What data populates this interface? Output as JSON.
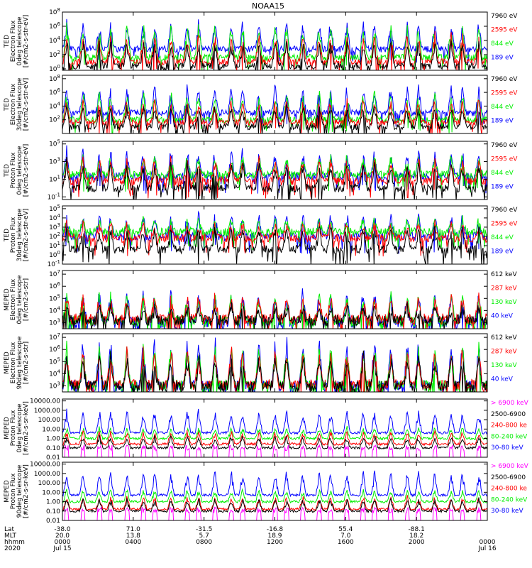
{
  "title": "NOAA15",
  "colors": {
    "black": "#000000",
    "red": "#ff0000",
    "green": "#00ee00",
    "blue": "#0000ff",
    "magenta": "#ff00ff"
  },
  "chart_data": [
    {
      "type": "line",
      "ylabel": [
        "TED",
        "Electron Flux",
        "0deg telescope",
        "[#/cm2-s-str-eV]"
      ],
      "scale": "log",
      "ticks": [
        "10^0",
        "10^2",
        "10^4",
        "10^6",
        "10^8"
      ],
      "ylim_exp": [
        -0.2,
        8
      ],
      "series": [
        {
          "name": "7960 eV",
          "color": "black",
          "baseline": 0.4,
          "peak": 4.0
        },
        {
          "name": "2595 eV",
          "color": "red",
          "baseline": 1.0,
          "peak": 4.8
        },
        {
          "name": "844 eV",
          "color": "green",
          "baseline": 1.6,
          "peak": 6.2
        },
        {
          "name": "189 eV",
          "color": "blue",
          "baseline": 2.8,
          "peak": 6.6
        }
      ]
    },
    {
      "type": "line",
      "ylabel": [
        "TED",
        "Electron Flux",
        "30deg telescope",
        "[#/cm2-s-str-eV]"
      ],
      "scale": "log",
      "ticks": [
        "10^2",
        "10^4",
        "10^6",
        "10^8"
      ],
      "ylim_exp": [
        0,
        8.5
      ],
      "series": [
        {
          "name": "7960 eV",
          "color": "black",
          "baseline": 1.0,
          "peak": 4.2
        },
        {
          "name": "2595 eV",
          "color": "red",
          "baseline": 1.6,
          "peak": 5.0
        },
        {
          "name": "844 eV",
          "color": "green",
          "baseline": 2.0,
          "peak": 6.2
        },
        {
          "name": "189 eV",
          "color": "blue",
          "baseline": 3.0,
          "peak": 6.8
        }
      ]
    },
    {
      "type": "line",
      "ylabel": [
        "TED",
        "Proton Flux",
        "0deg telescope",
        "[#/cm2-s-str-eV]"
      ],
      "scale": "log",
      "ticks": [
        "10^-1",
        "10^1",
        "10^3",
        "10^5"
      ],
      "ylim_exp": [
        -1.3,
        5.3
      ],
      "series": [
        {
          "name": "7960 eV",
          "color": "black",
          "baseline": 0.0,
          "peak": 3.0
        },
        {
          "name": "2595 eV",
          "color": "red",
          "baseline": 0.8,
          "peak": 3.3
        },
        {
          "name": "844 eV",
          "color": "green",
          "baseline": 1.5,
          "peak": 3.6
        },
        {
          "name": "189 eV",
          "color": "blue",
          "baseline": 1.3,
          "peak": 4.2
        }
      ]
    },
    {
      "type": "line",
      "ylabel": [
        "TED",
        "Proton Flux",
        "30deg telescope",
        "[#/cm2-s-str-eV]"
      ],
      "scale": "log",
      "ticks": [
        "10^-1",
        "10^0",
        "10^1",
        "10^2",
        "10^3",
        "10^4",
        "10^5"
      ],
      "ylim_exp": [
        -1,
        5.3
      ],
      "series": [
        {
          "name": "7960 eV",
          "color": "black",
          "baseline": 0.6,
          "peak": 3.0
        },
        {
          "name": "2595 eV",
          "color": "red",
          "baseline": 1.8,
          "peak": 3.4
        },
        {
          "name": "844 eV",
          "color": "green",
          "baseline": 2.5,
          "peak": 3.8
        },
        {
          "name": "189 eV",
          "color": "blue",
          "baseline": 2.0,
          "peak": 4.4
        }
      ]
    },
    {
      "type": "line",
      "ylabel": [
        "MEPED",
        "Electron Flux",
        "0deg telescope",
        "[#/cm2-s-str]"
      ],
      "scale": "log",
      "ticks": [
        "10^3",
        "10^4",
        "10^5",
        "10^6",
        "10^7"
      ],
      "ylim_exp": [
        2.5,
        7.3
      ],
      "series": [
        {
          "name": "612 keV",
          "color": "black",
          "baseline": 3.2,
          "peak": 4.3
        },
        {
          "name": "287 keV",
          "color": "red",
          "baseline": 3.3,
          "peak": 5.2
        },
        {
          "name": "130 keV",
          "color": "green",
          "baseline": 3.1,
          "peak": 5.4
        },
        {
          "name": "40 keV",
          "color": "blue",
          "baseline": 3.0,
          "peak": 5.6
        }
      ]
    },
    {
      "type": "line",
      "ylabel": [
        "MEPED",
        "Electron Flux",
        "90deg telescope",
        "[#/cm2-s-str]"
      ],
      "scale": "log",
      "ticks": [
        "10^3",
        "10^4",
        "10^5",
        "10^6",
        "10^7"
      ],
      "ylim_exp": [
        2.5,
        7.3
      ],
      "series": [
        {
          "name": "612 keV",
          "color": "black",
          "baseline": 3.0,
          "peak": 5.6
        },
        {
          "name": "287 keV",
          "color": "red",
          "baseline": 3.1,
          "peak": 6.0
        },
        {
          "name": "130 keV",
          "color": "green",
          "baseline": 3.0,
          "peak": 6.3
        },
        {
          "name": "40 keV",
          "color": "blue",
          "baseline": 3.0,
          "peak": 6.8
        }
      ]
    },
    {
      "type": "line",
      "ylabel": [
        "MEPED",
        "Proton Flux",
        "0deg telescope",
        "[#/cm2-s-sr-keV]"
      ],
      "scale": "log",
      "ticks": [
        "0.01",
        "0.10",
        "1.00",
        "10.00",
        "100.00",
        "1000.00",
        "10000.00"
      ],
      "ylim_exp": [
        -2,
        4.2
      ],
      "series": [
        {
          "name": "> 6900 keV",
          "color": "magenta",
          "baseline": -1.3,
          "peak": -0.7
        },
        {
          "name": "2500-6900",
          "color": "black",
          "baseline": -1.0,
          "peak": 0.3
        },
        {
          "name": "240-800 ke",
          "color": "red",
          "baseline": -0.6,
          "peak": 0.8
        },
        {
          "name": "80-240 keV",
          "color": "green",
          "baseline": 0.0,
          "peak": 1.2
        },
        {
          "name": "30-80 keV",
          "color": "blue",
          "baseline": 0.6,
          "peak": 3.0
        }
      ]
    },
    {
      "type": "line",
      "ylabel": [
        "MEPED",
        "Proton Flux",
        "90deg telescope",
        "[#/cm2-s-sr-keV]"
      ],
      "scale": "log",
      "ticks": [
        "0.01",
        "0.10",
        "1.00",
        "10.00",
        "100.00",
        "1000.00",
        "10000.00"
      ],
      "ylim_exp": [
        -2,
        4.2
      ],
      "series": [
        {
          "name": "> 6900 keV",
          "color": "magenta",
          "baseline": -1.2,
          "peak": -0.6
        },
        {
          "name": "2500-6900",
          "color": "black",
          "baseline": -1.0,
          "peak": 0.3
        },
        {
          "name": "240-800 ke",
          "color": "red",
          "baseline": -0.8,
          "peak": 0.6
        },
        {
          "name": "80-240 keV",
          "color": "green",
          "baseline": 0.0,
          "peak": 1.3
        },
        {
          "name": "30-80 keV",
          "color": "blue",
          "baseline": 0.7,
          "peak": 3.2
        }
      ]
    }
  ],
  "x_axis": {
    "row_labels": [
      "Lat",
      "MLT",
      "hhmm",
      "2020"
    ],
    "columns": [
      [
        "-38.0",
        "20.0",
        "0000",
        "Jul 15"
      ],
      [
        "71.0",
        "13.8",
        "0400",
        ""
      ],
      [
        "-31.5",
        "5.7",
        "0800",
        ""
      ],
      [
        "-16.8",
        "18.9",
        "1200",
        ""
      ],
      [
        "55.4",
        "7.0",
        "1600",
        ""
      ],
      [
        "-88.1",
        "18.2",
        "2000",
        ""
      ],
      [
        "",
        "",
        "0000",
        "Jul 16"
      ]
    ]
  }
}
